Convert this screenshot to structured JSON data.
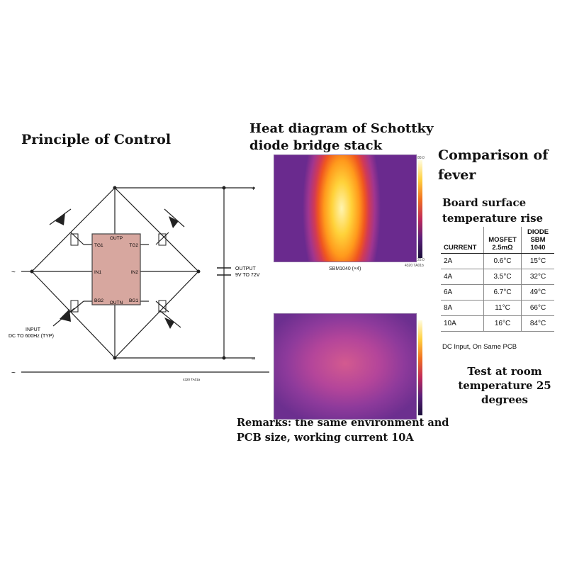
{
  "titles": {
    "control": "Principle of Control",
    "heat": "Heat diagram of Schottky diode bridge stack",
    "compare": "Comparison of fever",
    "board": "Board surface temperature rise",
    "test_note": "Test at room temperature 25 degrees",
    "remarks": "Remarks: the same environment and PCB size, working current 10A"
  },
  "circuit": {
    "chip_pins": {
      "outp": "OUTP",
      "outn": "OUTN",
      "tg1": "TG1",
      "tg2": "TG2",
      "in1": "IN1",
      "in2": "IN2",
      "bg2": "BG2",
      "bg1": "BG1"
    },
    "plus": "+",
    "minus": "–",
    "tilde_top": "~",
    "tilde_bottom": "~",
    "output_label_1": "OUTPUT",
    "output_label_2": "9V TO 72V",
    "input_label_1": "INPUT",
    "input_label_2": "DC TO 600Hz (TYP)",
    "fig_code": "4320 TA01a"
  },
  "thermal": {
    "top_caption": "SBM1040 (×4)",
    "top_code": "4320 TA01b",
    "scale_max": "80.0",
    "scale_min": "25.0"
  },
  "table": {
    "headers": [
      "CURRENT",
      "MOSFET 2.5mΩ",
      "DIODE SBM 1040"
    ],
    "rows": [
      [
        "2A",
        "0.6°C",
        "15°C"
      ],
      [
        "4A",
        "3.5°C",
        "32°C"
      ],
      [
        "6A",
        "6.7°C",
        "49°C"
      ],
      [
        "8A",
        "11°C",
        "66°C"
      ],
      [
        "10A",
        "16°C",
        "84°C"
      ]
    ],
    "note": "DC Input, On Same PCB"
  },
  "colors": {
    "chip_fill": "#d7a79f",
    "chip_stroke": "#444444",
    "wire": "#222222"
  }
}
